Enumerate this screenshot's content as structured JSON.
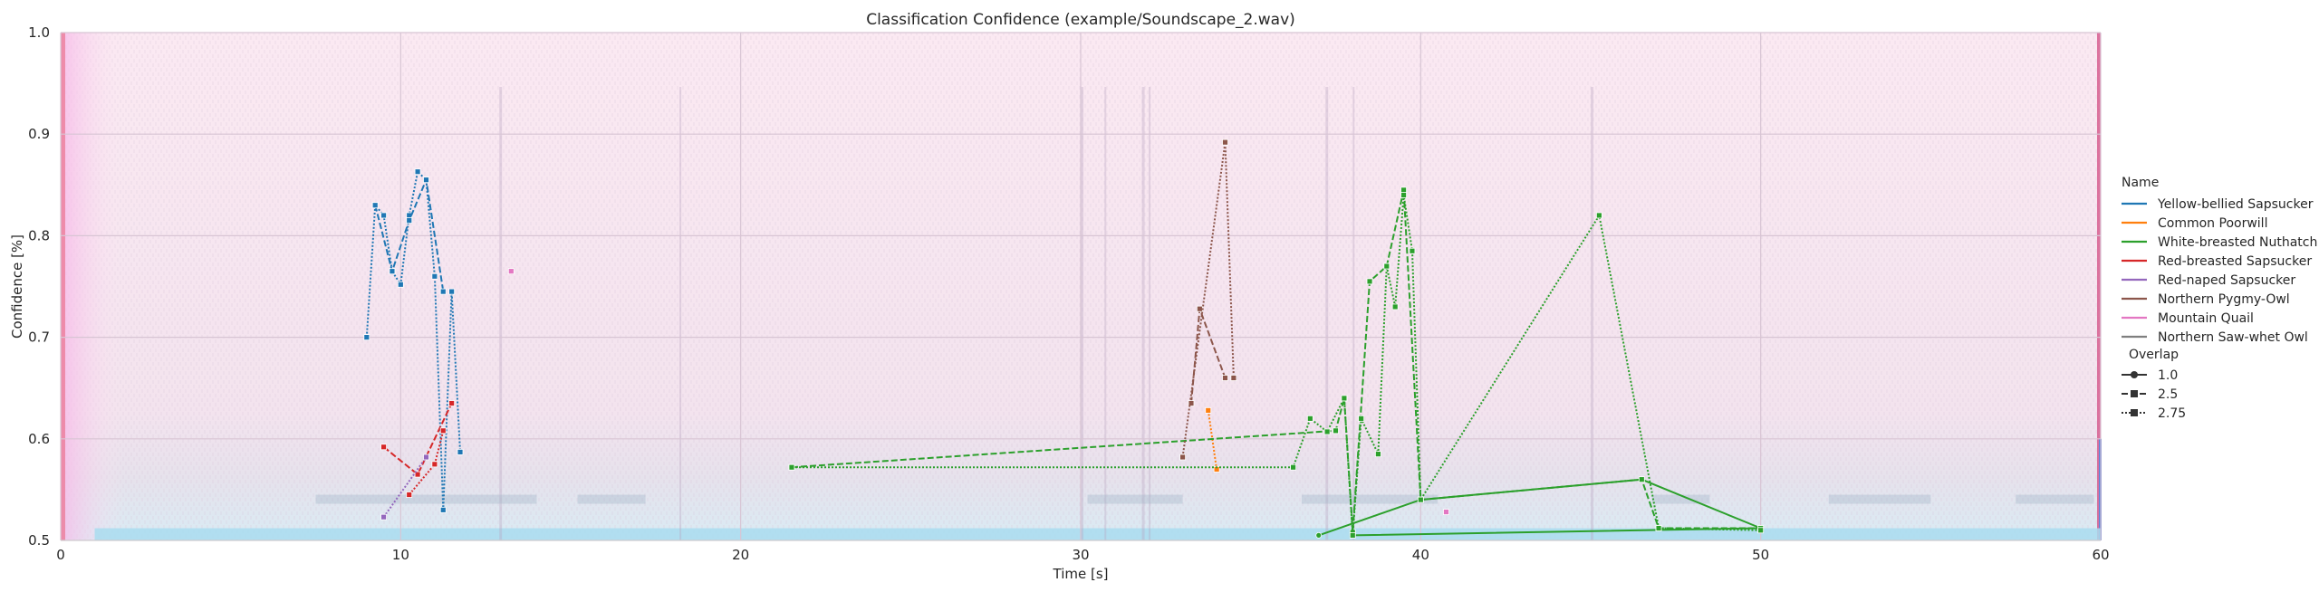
{
  "chart_data": {
    "type": "line",
    "title": "Classification Confidence (example/Soundscape_2.wav)",
    "xlabel": "Time [s]",
    "ylabel": "Confidence [%]",
    "xlim": [
      0,
      60
    ],
    "ylim": [
      0.5,
      1.0
    ],
    "xticks": [
      "0",
      "10",
      "20",
      "30",
      "40",
      "50",
      "60"
    ],
    "yticks": [
      "0.5",
      "0.6",
      "0.7",
      "0.8",
      "0.9",
      "1.0"
    ],
    "grid": true,
    "background": "spectrogram",
    "legend": {
      "placement": "right",
      "name_title": "Name",
      "overlap_title": "Overlap",
      "names": [
        {
          "label": "Yellow-bellied Sapsucker",
          "color": "#1f77b4"
        },
        {
          "label": "Common Poorwill",
          "color": "#ff7f0e"
        },
        {
          "label": "White-breasted Nuthatch",
          "color": "#2ca02c"
        },
        {
          "label": "Red-breasted Sapsucker",
          "color": "#d62728"
        },
        {
          "label": "Red-naped Sapsucker",
          "color": "#9467bd"
        },
        {
          "label": "Northern Pygmy-Owl",
          "color": "#8c564b"
        },
        {
          "label": "Mountain Quail",
          "color": "#e377c2"
        },
        {
          "label": "Northern Saw-whet Owl",
          "color": "#7f7f7f"
        }
      ],
      "overlaps": [
        {
          "label": "1.0",
          "style": "solid",
          "marker": "circle"
        },
        {
          "label": "2.5",
          "style": "dashed",
          "marker": "square"
        },
        {
          "label": "2.75",
          "style": "dotted",
          "marker": "square"
        }
      ]
    },
    "series": [
      {
        "name": "Yellow-bellied Sapsucker",
        "overlap": "2.75",
        "color": "#1f77b4",
        "style": "dotted",
        "points": [
          [
            9.0,
            0.7
          ],
          [
            9.25,
            0.83
          ],
          [
            9.5,
            0.82
          ],
          [
            9.75,
            0.765
          ],
          [
            10.0,
            0.752
          ],
          [
            10.25,
            0.82
          ],
          [
            10.5,
            0.863
          ],
          [
            10.75,
            0.855
          ],
          [
            11.0,
            0.76
          ],
          [
            11.25,
            0.53
          ],
          [
            11.5,
            0.745
          ],
          [
            11.75,
            0.587
          ]
        ]
      },
      {
        "name": "Yellow-bellied Sapsucker",
        "overlap": "2.5",
        "color": "#1f77b4",
        "style": "dashed",
        "points": [
          [
            9.25,
            0.83
          ],
          [
            9.75,
            0.765
          ],
          [
            10.25,
            0.815
          ],
          [
            10.75,
            0.855
          ],
          [
            11.25,
            0.745
          ]
        ]
      },
      {
        "name": "Common Poorwill",
        "overlap": "2.75",
        "color": "#ff7f0e",
        "style": "dotted",
        "points": [
          [
            33.75,
            0.628
          ],
          [
            34.0,
            0.57
          ]
        ]
      },
      {
        "name": "White-breasted Nuthatch",
        "overlap": "1.0",
        "color": "#2ca02c",
        "style": "solid",
        "points": [
          [
            37.0,
            0.505
          ],
          [
            40.0,
            0.54
          ],
          [
            46.5,
            0.56
          ],
          [
            50.0,
            0.512
          ],
          [
            38.0,
            0.505
          ]
        ]
      },
      {
        "name": "White-breasted Nuthatch",
        "overlap": "2.5",
        "color": "#2ca02c",
        "style": "dashed",
        "points": [
          [
            21.5,
            0.572
          ],
          [
            37.5,
            0.608
          ],
          [
            37.75,
            0.64
          ],
          [
            38.0,
            0.508
          ],
          [
            38.5,
            0.755
          ],
          [
            39.0,
            0.77
          ],
          [
            39.5,
            0.845
          ],
          [
            40.0,
            0.54
          ],
          [
            46.5,
            0.56
          ],
          [
            47.0,
            0.512
          ],
          [
            50.0,
            0.512
          ]
        ]
      },
      {
        "name": "White-breasted Nuthatch",
        "overlap": "2.75",
        "color": "#2ca02c",
        "style": "dotted",
        "points": [
          [
            21.5,
            0.572
          ],
          [
            36.25,
            0.572
          ],
          [
            36.75,
            0.62
          ],
          [
            37.25,
            0.607
          ],
          [
            37.75,
            0.64
          ],
          [
            38.0,
            0.505
          ],
          [
            38.25,
            0.62
          ],
          [
            38.75,
            0.585
          ],
          [
            39.0,
            0.77
          ],
          [
            39.25,
            0.73
          ],
          [
            39.5,
            0.84
          ],
          [
            39.75,
            0.785
          ],
          [
            40.0,
            0.54
          ],
          [
            45.25,
            0.82
          ],
          [
            47.0,
            0.512
          ],
          [
            50.0,
            0.51
          ]
        ]
      },
      {
        "name": "Red-breasted Sapsucker",
        "overlap": "2.5",
        "color": "#d62728",
        "style": "dashed",
        "points": [
          [
            9.5,
            0.592
          ],
          [
            10.5,
            0.565
          ],
          [
            11.5,
            0.635
          ]
        ]
      },
      {
        "name": "Red-breasted Sapsucker",
        "overlap": "2.75",
        "color": "#d62728",
        "style": "dotted",
        "points": [
          [
            10.25,
            0.545
          ],
          [
            11.0,
            0.575
          ],
          [
            11.25,
            0.608
          ]
        ]
      },
      {
        "name": "Red-naped Sapsucker",
        "overlap": "2.75",
        "color": "#9467bd",
        "style": "dotted",
        "points": [
          [
            9.5,
            0.523
          ],
          [
            10.75,
            0.582
          ]
        ]
      },
      {
        "name": "Northern Pygmy-Owl",
        "overlap": "2.5",
        "color": "#8c564b",
        "style": "dashed",
        "points": [
          [
            33.25,
            0.635
          ],
          [
            33.5,
            0.728
          ],
          [
            34.25,
            0.66
          ]
        ]
      },
      {
        "name": "Northern Pygmy-Owl",
        "overlap": "2.75",
        "color": "#8c564b",
        "style": "dotted",
        "points": [
          [
            33.0,
            0.582
          ],
          [
            34.25,
            0.892
          ],
          [
            34.5,
            0.66
          ]
        ]
      },
      {
        "name": "Mountain Quail",
        "overlap": "2.75",
        "color": "#e377c2",
        "style": "dotted",
        "points": [
          [
            13.25,
            0.765
          ],
          [
            40.75,
            0.528
          ]
        ]
      },
      {
        "name": "Northern Saw-whet Owl",
        "overlap": "2.75",
        "color": "#7f7f7f",
        "style": "dotted",
        "points": []
      }
    ]
  }
}
